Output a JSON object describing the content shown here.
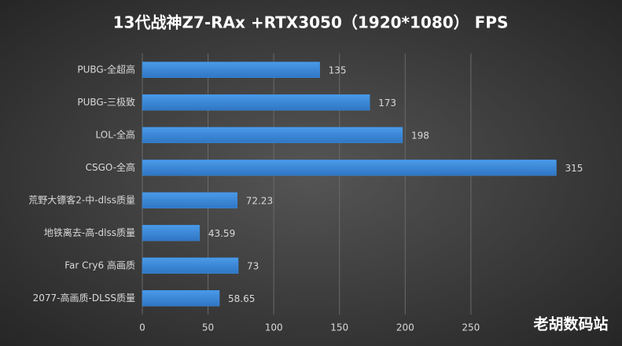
{
  "chart_data": {
    "type": "hbar",
    "title": "13代战神Z7-RAx +RTX3050（1920*1080） FPS",
    "categories": [
      "PUBG-全超高",
      "PUBG-三极致",
      "LOL-全高",
      "CSGO-全高",
      "荒野大镖客2-中-dlss质量",
      "地铁离去-高-dlss质量",
      "Far Cry6 高画质",
      "2077-高画质-DLSS质量"
    ],
    "values": [
      135,
      173,
      198,
      315,
      72.23,
      43.59,
      73,
      58.65
    ],
    "color": "#3d8bdb",
    "xlim": [
      0,
      350
    ],
    "xticks": [
      0,
      50,
      100,
      150,
      200,
      250
    ],
    "grid": true,
    "annotation": "老胡数码站"
  }
}
